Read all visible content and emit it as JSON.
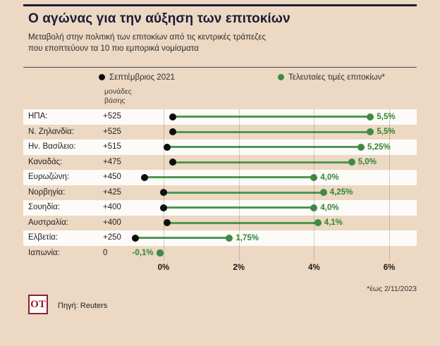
{
  "colors": {
    "background": "#ecd8c3",
    "stripe": "#fcfbf8",
    "title_navy": "#1b1b35",
    "green_line": "#4e9751",
    "green_dot": "#3f8a44",
    "green_text": "#2f8632",
    "black_dot": "#0d0d0d",
    "logo_maroon": "#8e1f2e"
  },
  "legend": {
    "start_label": "Σεπτέμβριος 2021",
    "end_label": "Τελευταίες τιμές επιτοκίων*"
  },
  "chart_data": {
    "type": "dumbbell",
    "title": "Ο αγώνας για την αύξηση των επιτοκίων",
    "subtitle_lines": [
      "Μεταβολή στην πολιτική των επιτοκίων από τις κεντρικές τράπεζες",
      "που εποπτεύουν τα 10 πιο εμπορικά νομίσματα"
    ],
    "unit_label": "μονάδες βάσης",
    "series_names": [
      "Σεπτέμβριος 2021",
      "Τελευταίες τιμές επιτοκίων*"
    ],
    "rows": [
      {
        "country": "ΗΠΑ:",
        "bp": "+525",
        "start": 0.25,
        "end": 5.5,
        "rate": "5,5%",
        "label_side": "right"
      },
      {
        "country": "Ν. Ζηλανδία:",
        "bp": "+525",
        "start": 0.25,
        "end": 5.5,
        "rate": "5,5%",
        "label_side": "right"
      },
      {
        "country": "Ην. Βασίλειο:",
        "bp": "+515",
        "start": 0.1,
        "end": 5.25,
        "rate": "5,25%",
        "label_side": "right"
      },
      {
        "country": "Καναδάς:",
        "bp": "+475",
        "start": 0.25,
        "end": 5.0,
        "rate": "5,0%",
        "label_side": "right"
      },
      {
        "country": "Ευρωζώνη:",
        "bp": "+450",
        "start": -0.5,
        "end": 4.0,
        "rate": "4,0%",
        "label_side": "right"
      },
      {
        "country": "Νορβηγία:",
        "bp": "+425",
        "start": 0.0,
        "end": 4.25,
        "rate": "4,25%",
        "label_side": "right"
      },
      {
        "country": "Σουηδία:",
        "bp": "+400",
        "start": 0.0,
        "end": 4.0,
        "rate": "4,0%",
        "label_side": "right"
      },
      {
        "country": "Αυστραλία:",
        "bp": "+400",
        "start": 0.1,
        "end": 4.1,
        "rate": "4,1%",
        "label_side": "right"
      },
      {
        "country": "Ελβετία:",
        "bp": "+250",
        "start": -0.75,
        "end": 1.75,
        "rate": "1,75%",
        "label_side": "right"
      },
      {
        "country": "Ιαπωνία:",
        "bp": "0",
        "start": -0.1,
        "end": -0.1,
        "rate": "-0,1%",
        "label_side": "left"
      }
    ],
    "x_ticks": [
      {
        "label": "0%",
        "value": 0
      },
      {
        "label": "2%",
        "value": 2
      },
      {
        "label": "4%",
        "value": 4
      },
      {
        "label": "6%",
        "value": 6
      }
    ],
    "xlim": [
      -3.73,
      6.73
    ],
    "grid": true,
    "legend_position": "top"
  },
  "footnote": "*έως 2/11/2023",
  "footer": {
    "logo_text": "OT",
    "source": "Πηγή: Reuters"
  }
}
